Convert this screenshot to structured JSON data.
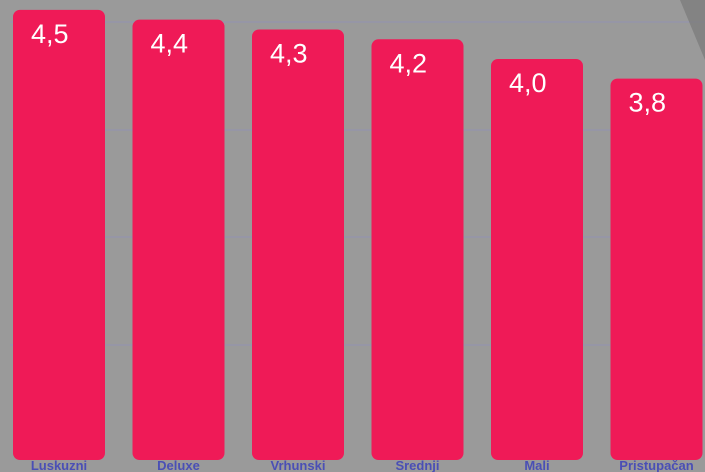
{
  "chart_data": {
    "type": "bar",
    "categories": [
      "Luskuzni",
      "Deluxe",
      "Vrhunski",
      "Srednji",
      "Mali",
      "Pristupačan"
    ],
    "values": [
      4.5,
      4.4,
      4.3,
      4.2,
      4.0,
      3.8
    ],
    "value_labels": [
      "4,5",
      "4,4",
      "4,3",
      "4,2",
      "4,0",
      "3,8"
    ],
    "ylim": [
      0,
      4.6
    ],
    "grid": true,
    "bar_color": "#ef1a57",
    "background_color": "#9a9a9a",
    "category_label_color": "#4a4fb5",
    "value_label_color": "#ffffff",
    "title": "",
    "xlabel": "",
    "ylabel": ""
  }
}
